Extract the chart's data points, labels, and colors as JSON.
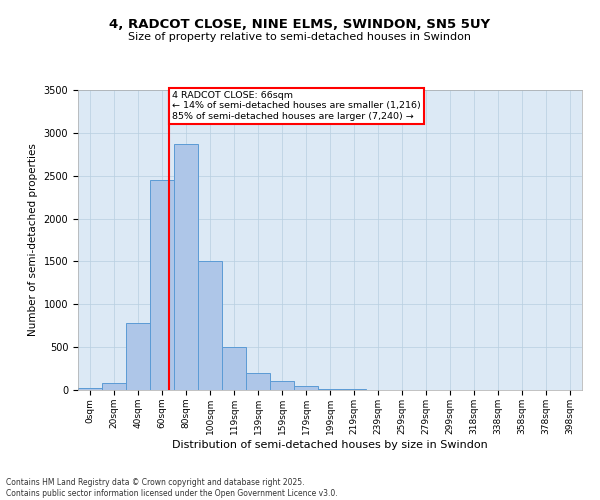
{
  "title_line1": "4, RADCOT CLOSE, NINE ELMS, SWINDON, SN5 5UY",
  "title_line2": "Size of property relative to semi-detached houses in Swindon",
  "xlabel": "Distribution of semi-detached houses by size in Swindon",
  "ylabel": "Number of semi-detached properties",
  "categories": [
    "0sqm",
    "20sqm",
    "40sqm",
    "60sqm",
    "80sqm",
    "100sqm",
    "119sqm",
    "139sqm",
    "159sqm",
    "179sqm",
    "199sqm",
    "219sqm",
    "239sqm",
    "259sqm",
    "279sqm",
    "299sqm",
    "318sqm",
    "338sqm",
    "358sqm",
    "378sqm",
    "398sqm"
  ],
  "values": [
    20,
    80,
    780,
    2450,
    2870,
    1500,
    500,
    200,
    105,
    45,
    15,
    8,
    3,
    2,
    1,
    1,
    0,
    0,
    0,
    0,
    0
  ],
  "bar_color": "#aec6e8",
  "bar_edge_color": "#5b9bd5",
  "annotation_title": "4 RADCOT CLOSE: 66sqm",
  "annotation_line1": "← 14% of semi-detached houses are smaller (1,216)",
  "annotation_line2": "85% of semi-detached houses are larger (7,240) →",
  "ylim": [
    0,
    3500
  ],
  "yticks": [
    0,
    500,
    1000,
    1500,
    2000,
    2500,
    3000,
    3500
  ],
  "footer_line1": "Contains HM Land Registry data © Crown copyright and database right 2025.",
  "footer_line2": "Contains public sector information licensed under the Open Government Licence v3.0.",
  "background_color": "#ffffff",
  "plot_bg_color": "#dce9f5",
  "grid_color": "#b8cfe0",
  "line_x_index": 3.3
}
